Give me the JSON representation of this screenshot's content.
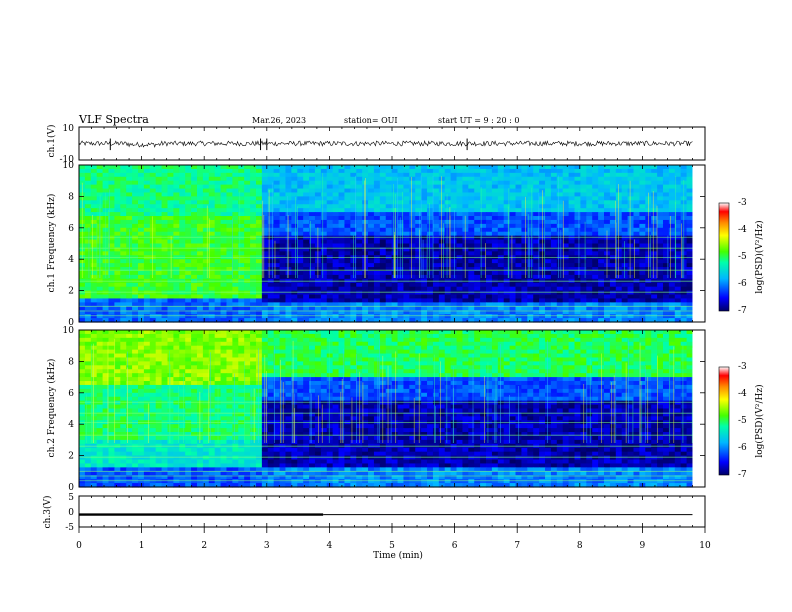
{
  "header": {
    "title": "VLF Spectra",
    "date": "Mar.26, 2023",
    "station": "station= OUI",
    "start": "start  UT  =   9  : 20 : 0"
  },
  "chart_data": [
    {
      "type": "line",
      "name": "ch1-waveform",
      "ylabel": "ch.1(V)",
      "ylim": [
        -10,
        10
      ],
      "y_ticks": [
        "10",
        "-10"
      ],
      "baseline": 0,
      "noise_amplitude": 1.5,
      "spikes_min": [
        0.5,
        2.9,
        3.0,
        6.2
      ]
    },
    {
      "type": "heatmap",
      "name": "ch1-spectrogram",
      "ylabel": "ch.1\nFrequency (kHz)",
      "ylim": [
        0,
        10
      ],
      "y_ticks": [
        "0",
        "2",
        "4",
        "6",
        "8",
        "10"
      ],
      "xlim": [
        0,
        10
      ],
      "data_end_min": 9.8,
      "change_min": 2.9,
      "colorbar": {
        "label": "log(PSD)(V²/Hz)",
        "range": [
          -7,
          -3
        ],
        "ticks": [
          "-3",
          "-4",
          "-5",
          "-6",
          "-7"
        ]
      }
    },
    {
      "type": "heatmap",
      "name": "ch2-spectrogram",
      "ylabel": "ch.2\nFrequency (kHz)",
      "ylim": [
        0,
        10
      ],
      "y_ticks": [
        "0",
        "2",
        "4",
        "6",
        "8",
        "10"
      ],
      "xlim": [
        0,
        10
      ],
      "data_end_min": 9.8,
      "change_min": 2.9,
      "colorbar": {
        "label": "log(PSD)(V²/Hz)",
        "range": [
          -7,
          -3
        ],
        "ticks": [
          "-3",
          "-4",
          "-5",
          "-6",
          "-7"
        ]
      }
    },
    {
      "type": "line",
      "name": "ch3-signal",
      "ylabel": "ch.3(V)",
      "ylim": [
        -5,
        5
      ],
      "y_ticks": [
        "5",
        "0",
        "-5"
      ],
      "level": -1.0,
      "thick_until_min": 3.9,
      "xlabel": "Time  (min)",
      "x_ticks": [
        "0",
        "1",
        "2",
        "3",
        "4",
        "5",
        "6",
        "7",
        "8",
        "9",
        "10"
      ]
    }
  ],
  "colors": {
    "axis": "#000000",
    "background": "#ffffff"
  }
}
